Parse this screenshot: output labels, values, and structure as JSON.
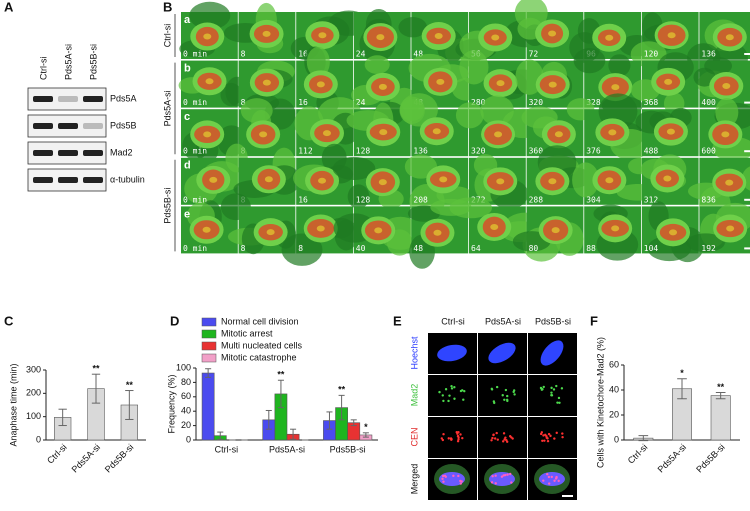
{
  "panels": [
    "A",
    "B",
    "C",
    "D",
    "E",
    "F"
  ],
  "blot": {
    "lanes": [
      "Ctrl-si",
      "Pds5A-si",
      "Pds5B-si"
    ],
    "bands": [
      "Pds5A",
      "Pds5B",
      "Mad2",
      "α-tubulin"
    ]
  },
  "timelapse": {
    "groups": [
      "Ctrl-si",
      "Pds5A-si",
      "Pds5B-si"
    ],
    "rows": [
      {
        "letter": "a",
        "times": [
          "0 min",
          "8",
          "16",
          "24",
          "48",
          "56",
          "72",
          "96",
          "120",
          "136"
        ]
      },
      {
        "letter": "b",
        "times": [
          "0 min",
          "8",
          "16",
          "24",
          "48",
          "280",
          "320",
          "328",
          "368",
          "400"
        ]
      },
      {
        "letter": "c",
        "times": [
          "0 min",
          "8",
          "112",
          "128",
          "136",
          "320",
          "360",
          "376",
          "488",
          "600"
        ]
      },
      {
        "letter": "d",
        "times": [
          "0 min",
          "8",
          "16",
          "128",
          "208",
          "272",
          "288",
          "304",
          "312",
          "836"
        ]
      },
      {
        "letter": "e",
        "times": [
          "0 min",
          "8",
          "8",
          "40",
          "48",
          "64",
          "80",
          "88",
          "104",
          "192"
        ]
      }
    ]
  },
  "staining": {
    "columns": [
      "Ctrl-si",
      "Pds5A-si",
      "Pds5B-si"
    ],
    "rows": [
      "Hoechst",
      "Mad2",
      "CEN",
      "Merged"
    ]
  },
  "chart_data": [
    {
      "type": "bar",
      "ylabel": "Anaphase time (min)",
      "categories": [
        "Ctrl-si",
        "Pds5A-si",
        "Pds5B-si"
      ],
      "values": [
        97,
        220,
        150
      ],
      "errors": [
        35,
        62,
        62
      ],
      "significance": [
        null,
        "**",
        "**"
      ],
      "color": "#d9d9d9",
      "ylim": [
        0,
        300
      ],
      "yticks": [
        0,
        100,
        200,
        300
      ]
    },
    {
      "type": "grouped-bar",
      "ylabel": "Frequency (%)",
      "categories": [
        "Ctrl-si",
        "Pds5A-si",
        "Pds5B-si"
      ],
      "series": [
        {
          "name": "Normal cell division",
          "color": "#4b4bef",
          "values": [
            93,
            28,
            27
          ],
          "errors": [
            6,
            13,
            12
          ],
          "significance": [
            null,
            null,
            null
          ]
        },
        {
          "name": "Mitotic arrest",
          "color": "#1fb51f",
          "values": [
            6,
            64,
            45
          ],
          "errors": [
            5,
            19,
            17
          ],
          "significance": [
            null,
            "**",
            "**"
          ]
        },
        {
          "name": "Multi nucleated cells",
          "color": "#e83232",
          "values": [
            0,
            8,
            24
          ],
          "errors": [
            0,
            7,
            4
          ],
          "significance": [
            null,
            null,
            null
          ]
        },
        {
          "name": "Mitotic catastrophe",
          "color": "#f2a0c8",
          "values": [
            0,
            0,
            7
          ],
          "errors": [
            0,
            0,
            3
          ],
          "significance": [
            null,
            null,
            "*"
          ]
        }
      ],
      "ylim": [
        0,
        100
      ],
      "yticks": [
        0,
        20,
        40,
        60,
        80,
        100
      ],
      "legend": "top"
    },
    {
      "type": "bar",
      "ylabel": "Cells with Kinetochore-Mad2 (%)",
      "categories": [
        "Ctrl-si",
        "Pds5A-si",
        "Pds5B-si"
      ],
      "values": [
        1.5,
        41,
        35.5
      ],
      "errors": [
        2,
        8,
        2.5
      ],
      "significance": [
        null,
        "*",
        "**"
      ],
      "color": "#d9d9d9",
      "ylim": [
        0,
        60
      ],
      "yticks": [
        0,
        20,
        40,
        60
      ]
    }
  ]
}
